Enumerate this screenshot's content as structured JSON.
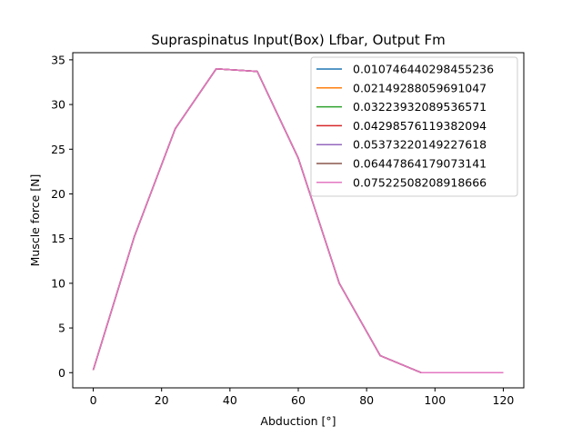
{
  "chart_data": {
    "type": "line",
    "title": "Supraspinatus Input(Box) Lfbar, Output Fm",
    "xlabel": "Abduction [°]",
    "ylabel": "Muscle force [N]",
    "xlim": [
      -6,
      126
    ],
    "ylim": [
      -1.7,
      35.8
    ],
    "xticks": [
      0,
      20,
      40,
      60,
      80,
      100,
      120
    ],
    "yticks": [
      0,
      5,
      10,
      15,
      20,
      25,
      30,
      35
    ],
    "grid": false,
    "legend_position": "top-right",
    "x": [
      0,
      12,
      24,
      36,
      48,
      60,
      72,
      84,
      96,
      108,
      120
    ],
    "series": [
      {
        "name": "0.010746440298455236",
        "color": "#1f77b4",
        "values": [
          0.3,
          15.2,
          27.3,
          34.0,
          33.7,
          24.0,
          10.0,
          1.9,
          0.0,
          0.0,
          0.0
        ]
      },
      {
        "name": "0.02149288059691047",
        "color": "#ff7f0e",
        "values": [
          0.3,
          15.2,
          27.3,
          34.0,
          33.7,
          24.0,
          10.0,
          1.9,
          0.0,
          0.0,
          0.0
        ]
      },
      {
        "name": "0.03223932089536571",
        "color": "#2ca02c",
        "values": [
          0.3,
          15.2,
          27.3,
          34.0,
          33.7,
          24.0,
          10.0,
          1.9,
          0.0,
          0.0,
          0.0
        ]
      },
      {
        "name": "0.04298576119382094",
        "color": "#d62728",
        "values": [
          0.3,
          15.2,
          27.3,
          34.0,
          33.7,
          24.0,
          10.0,
          1.9,
          0.0,
          0.0,
          0.0
        ]
      },
      {
        "name": "0.05373220149227618",
        "color": "#9467bd",
        "values": [
          0.3,
          15.2,
          27.3,
          34.0,
          33.7,
          24.0,
          10.0,
          1.9,
          0.0,
          0.0,
          0.0
        ]
      },
      {
        "name": "0.06447864179073141",
        "color": "#8c564b",
        "values": [
          0.3,
          15.2,
          27.3,
          34.0,
          33.7,
          24.0,
          10.0,
          1.9,
          0.0,
          0.0,
          0.0
        ]
      },
      {
        "name": "0.07522508208918666",
        "color": "#e377c2",
        "values": [
          0.3,
          15.2,
          27.3,
          34.0,
          33.7,
          24.0,
          10.0,
          1.9,
          0.0,
          0.0,
          0.0
        ]
      }
    ]
  }
}
